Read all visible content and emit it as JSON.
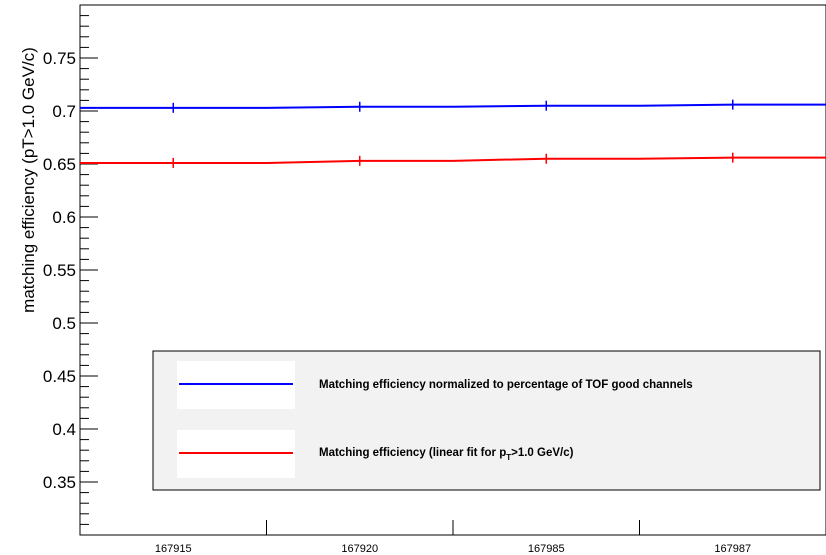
{
  "chart_data": {
    "type": "line",
    "categories": [
      "167915",
      "167920",
      "167985",
      "167987"
    ],
    "ylabel": "matching efficiency (pT>1.0 GeV/c)",
    "ylim": [
      0.3,
      0.8
    ],
    "yticks": [
      "0.35",
      "0.4",
      "0.45",
      "0.5",
      "0.55",
      "0.6",
      "0.65",
      "0.7",
      "0.75"
    ],
    "series": [
      {
        "name": "Matching efficiency normalized to percentage of TOF good channels",
        "color": "#0000ff",
        "values": [
          0.703,
          0.704,
          0.705,
          0.706
        ]
      },
      {
        "name_parts": [
          "Matching efficiency (linear fit for p",
          "T",
          ">1.0 GeV/c)"
        ],
        "color": "#ff0000",
        "values": [
          0.651,
          0.653,
          0.655,
          0.656
        ]
      }
    ],
    "legend_position": "bottom-right",
    "grid": false
  }
}
